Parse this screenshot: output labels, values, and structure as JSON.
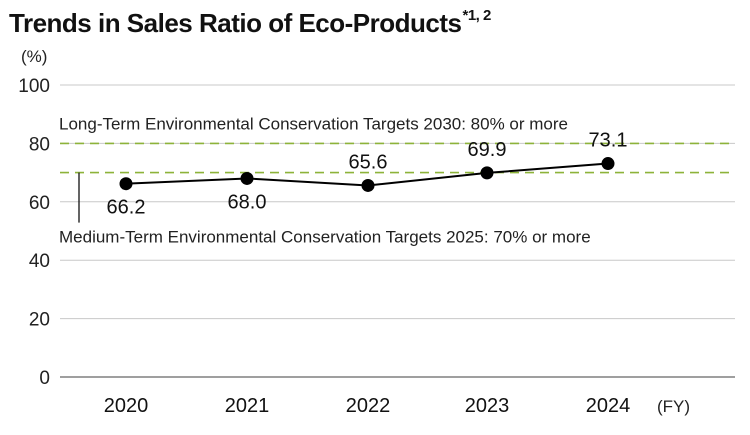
{
  "chart_data": {
    "type": "line",
    "title": "Trends in Sales Ratio of Eco-Products",
    "title_note": "*1, 2",
    "ylabel": "(%)",
    "xlabel": "(FY)",
    "ylim": [
      0,
      100
    ],
    "yticks": [
      0,
      20,
      40,
      60,
      80,
      100
    ],
    "grid": true,
    "categories": [
      "2020",
      "2021",
      "2022",
      "2023",
      "2024"
    ],
    "series": [
      {
        "values": [
          66.2,
          68.0,
          65.6,
          69.9,
          73.1
        ],
        "labels": [
          "66.2",
          "68.0",
          "65.6",
          "69.9",
          "73.1"
        ],
        "color": "#000000"
      }
    ],
    "targets": [
      {
        "value": 80,
        "label": "Long-Term Environmental Conservation Targets 2030: 80% or more",
        "color": "#8db33a"
      },
      {
        "value": 70,
        "label": "Medium-Term Environmental Conservation Targets 2025: 70% or more",
        "color": "#8db33a"
      }
    ]
  }
}
